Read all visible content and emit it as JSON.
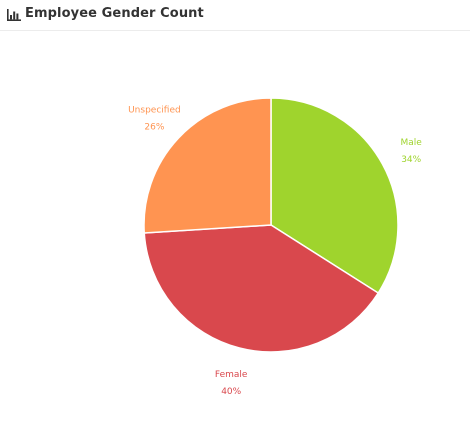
{
  "widget": {
    "title": "Employee Gender Count",
    "icon": "bar-chart-icon"
  },
  "chart_data": {
    "type": "pie",
    "title": "Employee Gender Count",
    "slices": [
      {
        "label": "Male",
        "value": 34,
        "display": "34%",
        "color": "#9fd42d"
      },
      {
        "label": "Female",
        "value": 40,
        "display": "40%",
        "color": "#d9484d"
      },
      {
        "label": "Unspecified",
        "value": 26,
        "display": "26%",
        "color": "#ff9451"
      }
    ],
    "start_angle_deg": 0,
    "direction": "clockwise",
    "legend": "none"
  }
}
